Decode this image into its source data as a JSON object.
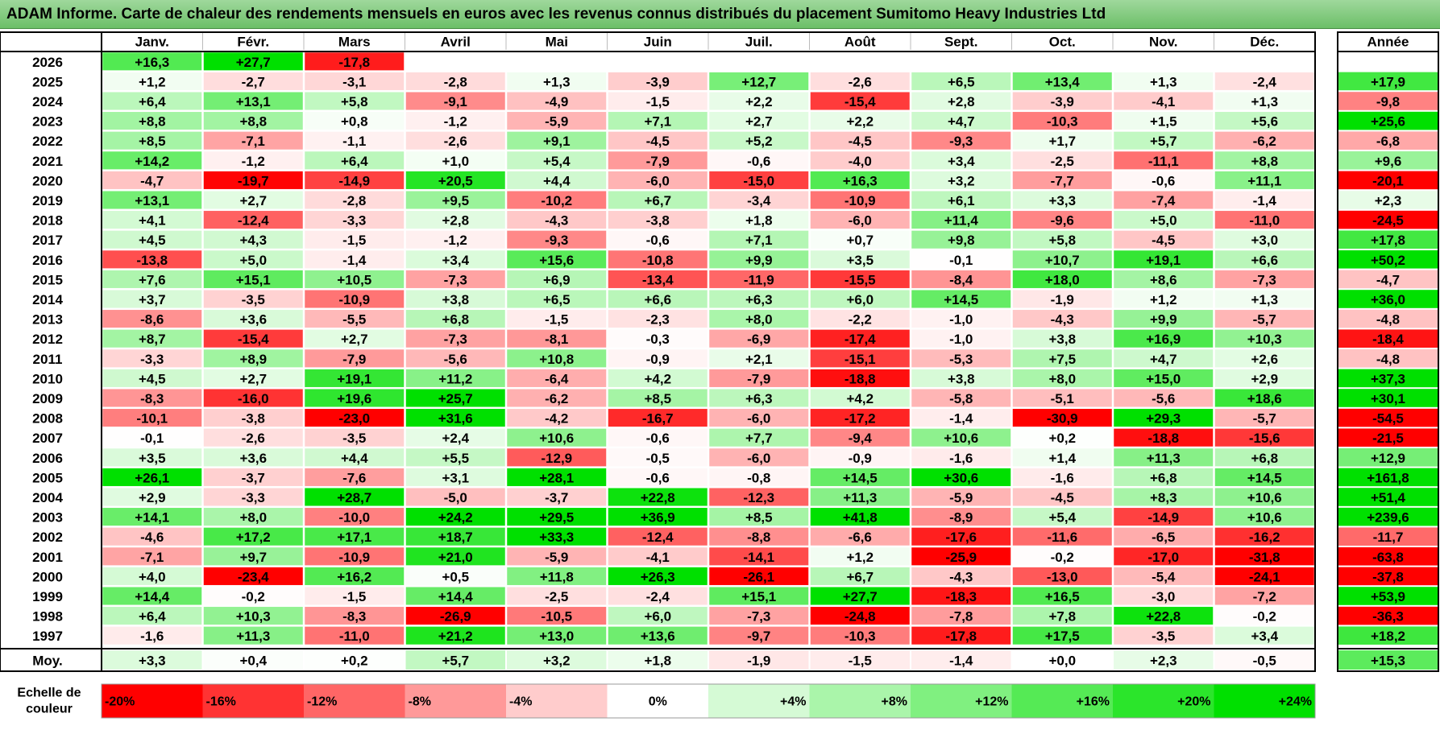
{
  "title": "ADAM Informe. Carte de chaleur des rendements mensuels en euros avec les revenus connus distribués du placement Sumitomo Heavy Industries Ltd",
  "chart_data": {
    "type": "heatmap",
    "columns": [
      "Janv.",
      "Févr.",
      "Mars",
      "Avril",
      "Mai",
      "Juin",
      "Juil.",
      "Août",
      "Sept.",
      "Oct.",
      "Nov.",
      "Déc."
    ],
    "year_header": "Année",
    "rows": [
      {
        "year": "2026",
        "months": [
          "+16,3",
          "+27,7",
          "-17,8",
          "",
          "",
          "",
          "",
          "",
          "",
          "",
          "",
          ""
        ],
        "annual": ""
      },
      {
        "year": "2025",
        "months": [
          "+1,2",
          "-2,7",
          "-3,1",
          "-2,8",
          "+1,3",
          "-3,9",
          "+12,7",
          "-2,6",
          "+6,5",
          "+13,4",
          "+1,3",
          "-2,4"
        ],
        "annual": "+17,9"
      },
      {
        "year": "2024",
        "months": [
          "+6,4",
          "+13,1",
          "+5,8",
          "-9,1",
          "-4,9",
          "-1,5",
          "+2,2",
          "-15,4",
          "+2,8",
          "-3,9",
          "-4,1",
          "+1,3"
        ],
        "annual": "-9,8"
      },
      {
        "year": "2023",
        "months": [
          "+8,8",
          "+8,8",
          "+0,8",
          "-1,2",
          "-5,9",
          "+7,1",
          "+2,7",
          "+2,2",
          "+4,7",
          "-10,3",
          "+1,5",
          "+5,6"
        ],
        "annual": "+25,6"
      },
      {
        "year": "2022",
        "months": [
          "+8,5",
          "-7,1",
          "-1,1",
          "-2,6",
          "+9,1",
          "-4,5",
          "+5,2",
          "-4,5",
          "-9,3",
          "+1,7",
          "+5,7",
          "-6,2"
        ],
        "annual": "-6,8"
      },
      {
        "year": "2021",
        "months": [
          "+14,2",
          "-1,2",
          "+6,4",
          "+1,0",
          "+5,4",
          "-7,9",
          "-0,6",
          "-4,0",
          "+3,4",
          "-2,5",
          "-11,1",
          "+8,8"
        ],
        "annual": "+9,6"
      },
      {
        "year": "2020",
        "months": [
          "-4,7",
          "-19,7",
          "-14,9",
          "+20,5",
          "+4,4",
          "-6,0",
          "-15,0",
          "+16,3",
          "+3,2",
          "-7,7",
          "-0,6",
          "+11,1"
        ],
        "annual": "-20,1"
      },
      {
        "year": "2019",
        "months": [
          "+13,1",
          "+2,7",
          "-2,8",
          "+9,5",
          "-10,2",
          "+6,7",
          "-3,4",
          "-10,9",
          "+6,1",
          "+3,3",
          "-7,4",
          "-1,4"
        ],
        "annual": "+2,3"
      },
      {
        "year": "2018",
        "months": [
          "+4,1",
          "-12,4",
          "-3,3",
          "+2,8",
          "-4,3",
          "-3,8",
          "+1,8",
          "-6,0",
          "+11,4",
          "-9,6",
          "+5,0",
          "-11,0"
        ],
        "annual": "-24,5"
      },
      {
        "year": "2017",
        "months": [
          "+4,5",
          "+4,3",
          "-1,5",
          "-1,2",
          "-9,3",
          "-0,6",
          "+7,1",
          "+0,7",
          "+9,8",
          "+5,8",
          "-4,5",
          "+3,0"
        ],
        "annual": "+17,8"
      },
      {
        "year": "2016",
        "months": [
          "-13,8",
          "+5,0",
          "-1,4",
          "+3,4",
          "+15,6",
          "-10,8",
          "+9,9",
          "+3,5",
          "-0,1",
          "+10,7",
          "+19,1",
          "+6,6"
        ],
        "annual": "+50,2"
      },
      {
        "year": "2015",
        "months": [
          "+7,6",
          "+15,1",
          "+10,5",
          "-7,3",
          "+6,9",
          "-13,4",
          "-11,9",
          "-15,5",
          "-8,4",
          "+18,0",
          "+8,6",
          "-7,3"
        ],
        "annual": "-4,7"
      },
      {
        "year": "2014",
        "months": [
          "+3,7",
          "-3,5",
          "-10,9",
          "+3,8",
          "+6,5",
          "+6,6",
          "+6,3",
          "+6,0",
          "+14,5",
          "-1,9",
          "+1,2",
          "+1,3"
        ],
        "annual": "+36,0"
      },
      {
        "year": "2013",
        "months": [
          "-8,6",
          "+3,6",
          "-5,5",
          "+6,8",
          "-1,5",
          "-2,3",
          "+8,0",
          "-2,2",
          "-1,0",
          "-4,3",
          "+9,9",
          "-5,7"
        ],
        "annual": "-4,8"
      },
      {
        "year": "2012",
        "months": [
          "+8,7",
          "-15,4",
          "+2,7",
          "-7,3",
          "-8,1",
          "-0,3",
          "-6,9",
          "-17,4",
          "-1,0",
          "+3,8",
          "+16,9",
          "+10,3"
        ],
        "annual": "-18,4"
      },
      {
        "year": "2011",
        "months": [
          "-3,3",
          "+8,9",
          "-7,9",
          "-5,6",
          "+10,8",
          "-0,9",
          "+2,1",
          "-15,1",
          "-5,3",
          "+7,5",
          "+4,7",
          "+2,6"
        ],
        "annual": "-4,8"
      },
      {
        "year": "2010",
        "months": [
          "+4,5",
          "+2,7",
          "+19,1",
          "+11,2",
          "-6,4",
          "+4,2",
          "-7,9",
          "-18,8",
          "+3,8",
          "+8,0",
          "+15,0",
          "+2,9"
        ],
        "annual": "+37,3"
      },
      {
        "year": "2009",
        "months": [
          "-8,3",
          "-16,0",
          "+19,6",
          "+25,7",
          "-6,2",
          "+8,5",
          "+6,3",
          "+4,2",
          "-5,8",
          "-5,1",
          "-5,6",
          "+18,6"
        ],
        "annual": "+30,1"
      },
      {
        "year": "2008",
        "months": [
          "-10,1",
          "-3,8",
          "-23,0",
          "+31,6",
          "-4,2",
          "-16,7",
          "-6,0",
          "-17,2",
          "-1,4",
          "-30,9",
          "+29,3",
          "-5,7"
        ],
        "annual": "-54,5"
      },
      {
        "year": "2007",
        "months": [
          "-0,1",
          "-2,6",
          "-3,5",
          "+2,4",
          "+10,6",
          "-0,6",
          "+7,7",
          "-9,4",
          "+10,6",
          "+0,2",
          "-18,8",
          "-15,6"
        ],
        "annual": "-21,5"
      },
      {
        "year": "2006",
        "months": [
          "+3,5",
          "+3,6",
          "+4,4",
          "+5,5",
          "-12,9",
          "-0,5",
          "-6,0",
          "-0,9",
          "-1,6",
          "+1,4",
          "+11,3",
          "+6,8"
        ],
        "annual": "+12,9"
      },
      {
        "year": "2005",
        "months": [
          "+26,1",
          "-3,7",
          "-7,6",
          "+3,1",
          "+28,1",
          "-0,6",
          "-0,8",
          "+14,5",
          "+30,6",
          "-1,6",
          "+6,8",
          "+14,5"
        ],
        "annual": "+161,8"
      },
      {
        "year": "2004",
        "months": [
          "+2,9",
          "-3,3",
          "+28,7",
          "-5,0",
          "-3,7",
          "+22,8",
          "-12,3",
          "+11,3",
          "-5,9",
          "-4,5",
          "+8,3",
          "+10,6"
        ],
        "annual": "+51,4"
      },
      {
        "year": "2003",
        "months": [
          "+14,1",
          "+8,0",
          "-10,0",
          "+24,2",
          "+29,5",
          "+36,9",
          "+8,5",
          "+41,8",
          "-8,9",
          "+5,4",
          "-14,9",
          "+10,6"
        ],
        "annual": "+239,6"
      },
      {
        "year": "2002",
        "months": [
          "-4,6",
          "+17,2",
          "+17,1",
          "+18,7",
          "+33,3",
          "-12,4",
          "-8,8",
          "-6,6",
          "-17,6",
          "-11,6",
          "-6,5",
          "-16,2"
        ],
        "annual": "-11,7"
      },
      {
        "year": "2001",
        "months": [
          "-7,1",
          "+9,7",
          "-10,9",
          "+21,0",
          "-5,9",
          "-4,1",
          "-14,1",
          "+1,2",
          "-25,9",
          "-0,2",
          "-17,0",
          "-31,8"
        ],
        "annual": "-63,8"
      },
      {
        "year": "2000",
        "months": [
          "+4,0",
          "-23,4",
          "+16,2",
          "+0,5",
          "+11,8",
          "+26,3",
          "-26,1",
          "+6,7",
          "-4,3",
          "-13,0",
          "-5,4",
          "-24,1"
        ],
        "annual": "-37,8"
      },
      {
        "year": "1999",
        "months": [
          "+14,4",
          "-0,2",
          "-1,5",
          "+14,4",
          "-2,5",
          "-2,4",
          "+15,1",
          "+27,7",
          "-18,3",
          "+16,5",
          "-3,0",
          "-7,2"
        ],
        "annual": "+53,9"
      },
      {
        "year": "1998",
        "months": [
          "+6,4",
          "+10,3",
          "-8,3",
          "-26,9",
          "-10,5",
          "+6,0",
          "-7,3",
          "-24,8",
          "-7,8",
          "+7,8",
          "+22,8",
          "-0,2"
        ],
        "annual": "-36,3"
      },
      {
        "year": "1997",
        "months": [
          "-1,6",
          "+11,3",
          "-11,0",
          "+21,2",
          "+13,0",
          "+13,6",
          "-9,7",
          "-10,3",
          "-17,8",
          "+17,5",
          "-3,5",
          "+3,4"
        ],
        "annual": "+18,2"
      }
    ],
    "average": {
      "label": "Moy.",
      "months": [
        "+3,3",
        "+0,4",
        "+0,2",
        "+5,7",
        "+3,2",
        "+1,8",
        "-1,9",
        "-1,5",
        "-1,4",
        "+0,0",
        "+2,3",
        "-0,5"
      ],
      "annual": "+15,3"
    },
    "scale": {
      "label_line1": "Echelle de",
      "label_line2": "couleur",
      "steps": [
        "-20%",
        "-16%",
        "-12%",
        "-8%",
        "-4%",
        "0%",
        "+4%",
        "+8%",
        "+12%",
        "+16%",
        "+20%",
        "+24%"
      ]
    },
    "color_positive_max": "#00e000",
    "color_negative_max": "#ff0000",
    "color_neutral": "#ffffff"
  }
}
